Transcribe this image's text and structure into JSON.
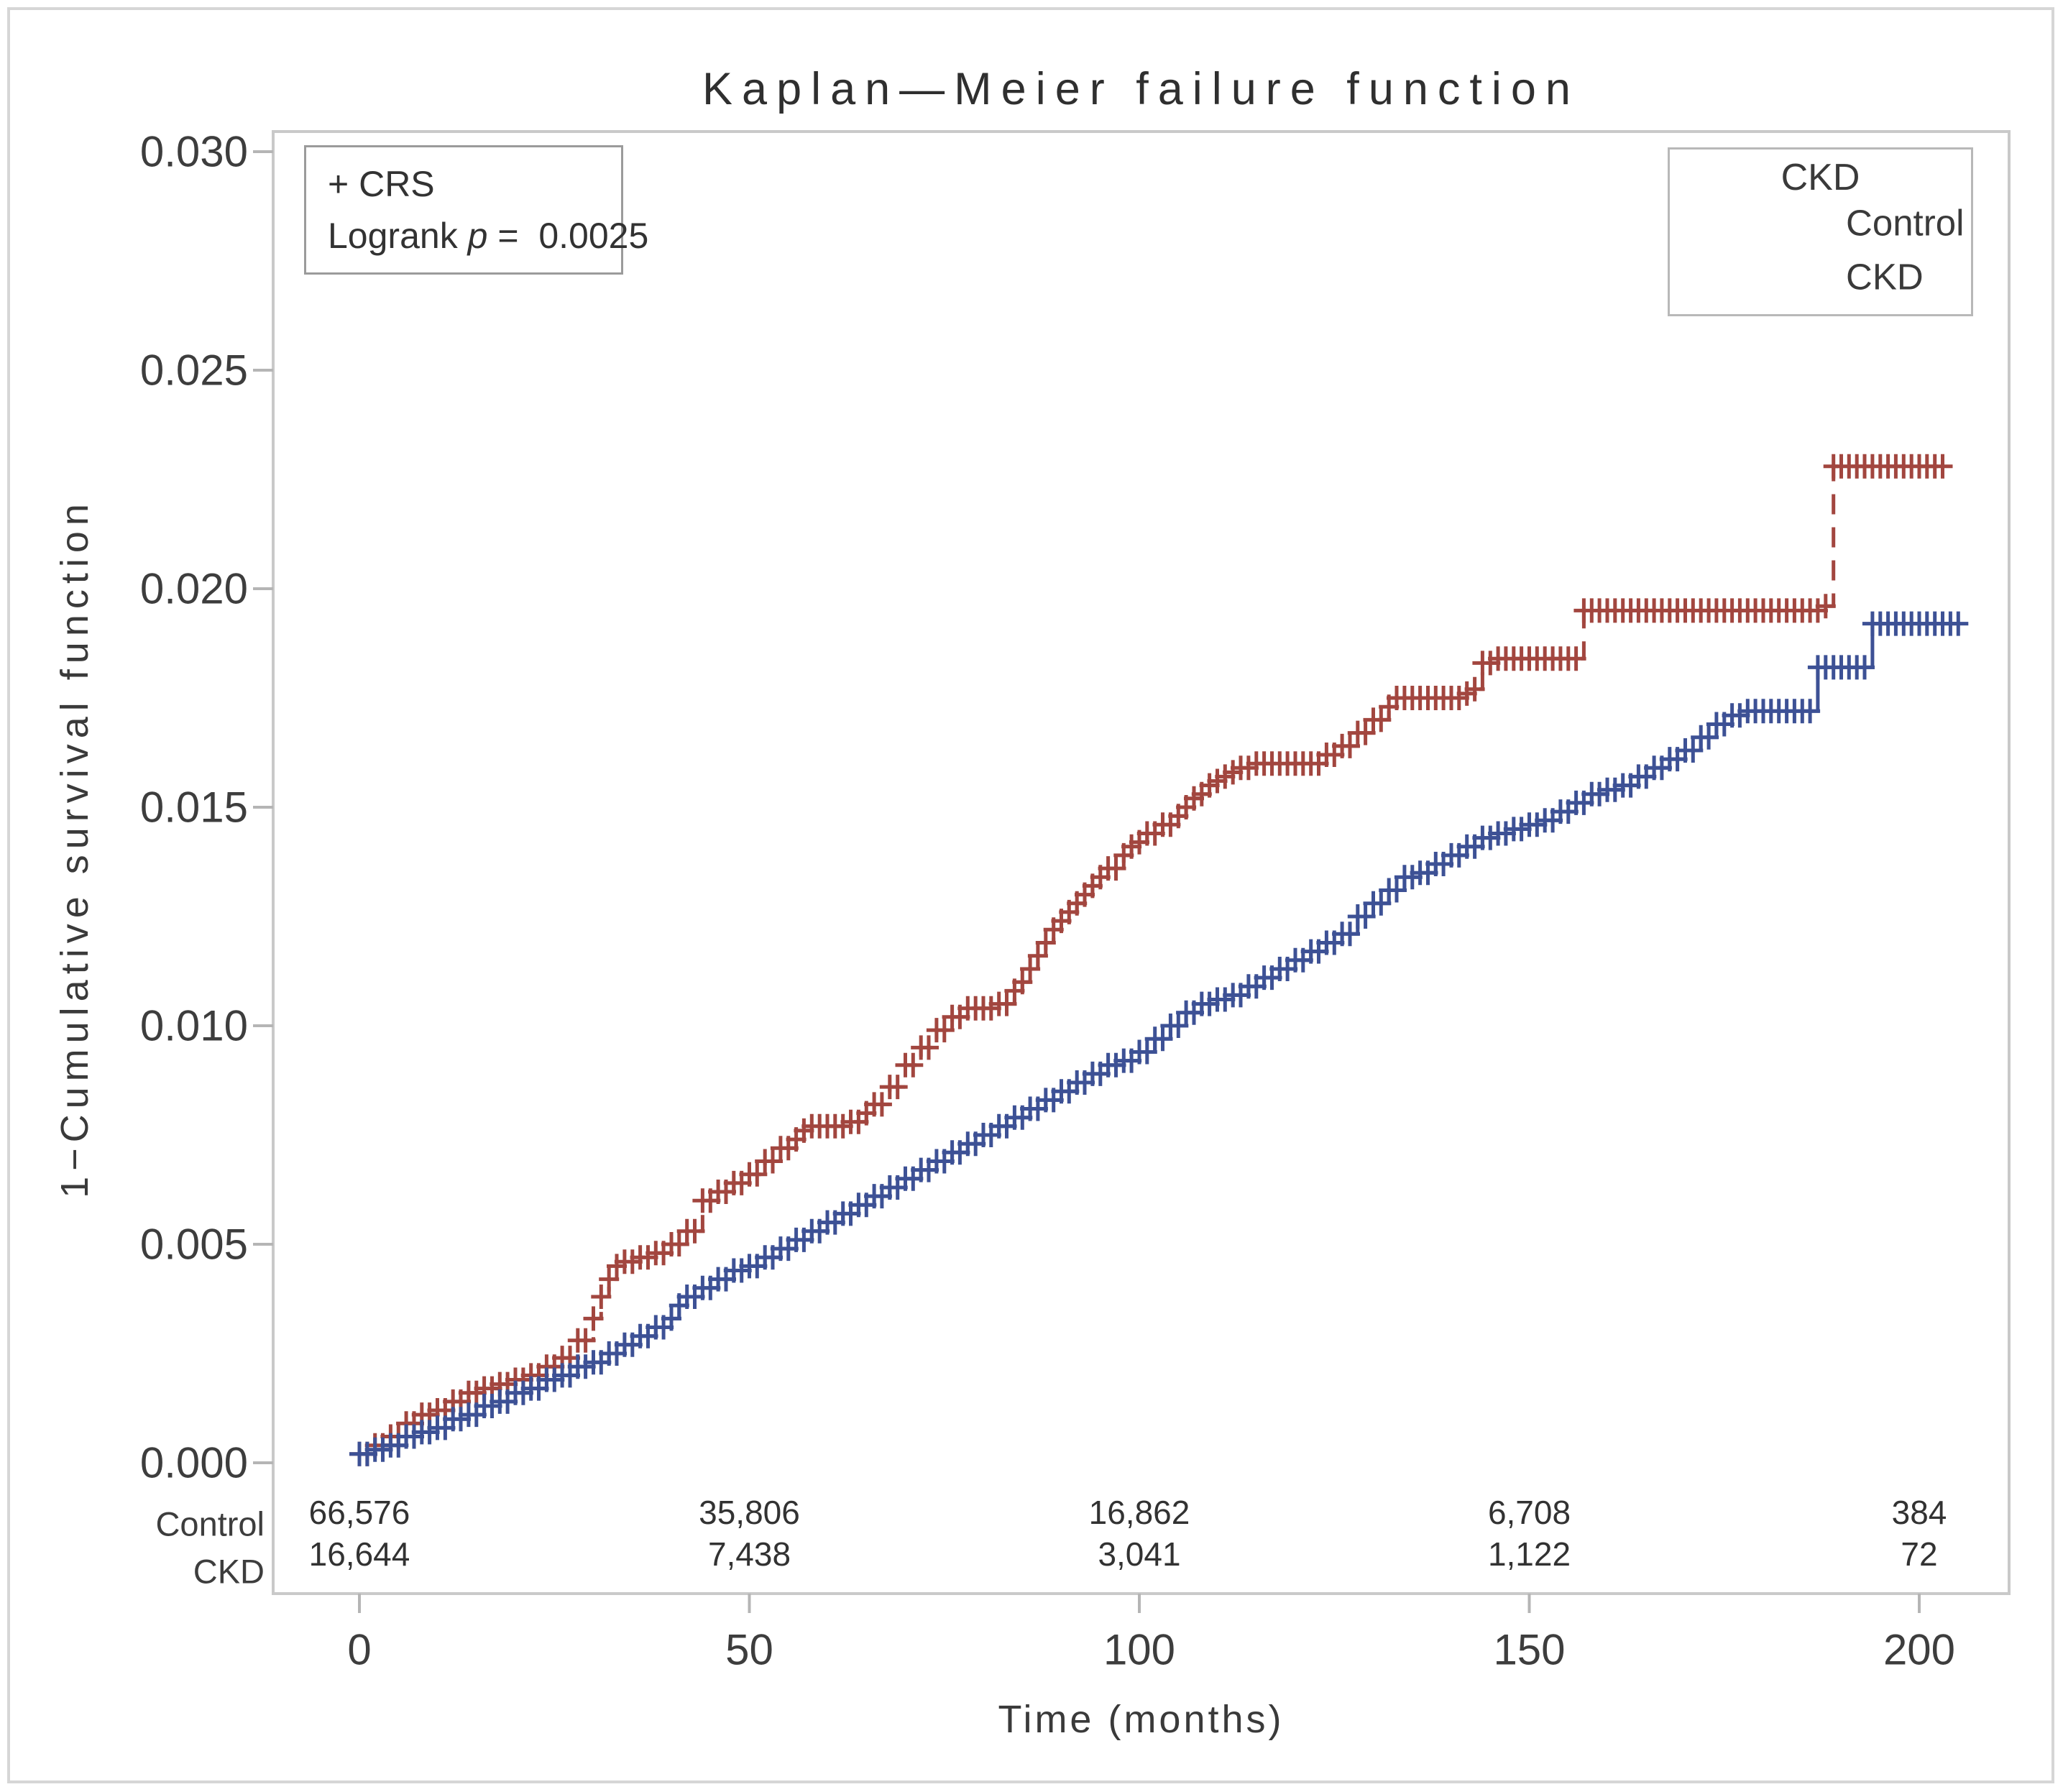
{
  "title": "Kaplan—Meier failure function",
  "annotation": {
    "line1": "+ CRS",
    "logrank_label": "Logrank",
    "p_symbol": "p",
    "equals": "=",
    "p_value": "0.0025"
  },
  "legend": {
    "title": "CKD",
    "entries": [
      {
        "label": "Control",
        "line_style": "solid",
        "color": "#3D5195"
      },
      {
        "label": "CKD",
        "line_style": "dashed",
        "color": "#A2463F"
      }
    ]
  },
  "axes": {
    "x": {
      "label": "Time (months)",
      "tick_labels": [
        "0",
        "50",
        "100",
        "150",
        "200"
      ],
      "tick_values": [
        0,
        50,
        100,
        150,
        200
      ]
    },
    "y": {
      "label": "1−Cumulative survival function",
      "tick_labels": [
        "0.000",
        "0.005",
        "0.010",
        "0.015",
        "0.020",
        "0.025",
        "0.030"
      ],
      "tick_values": [
        0,
        0.005,
        0.01,
        0.015,
        0.02,
        0.025,
        0.03
      ]
    }
  },
  "at_risk": {
    "columns": [
      0,
      50,
      100,
      150,
      200
    ],
    "rows": [
      {
        "label": "Control",
        "values": [
          "66,576",
          "35,806",
          "16,862",
          "6,708",
          "384"
        ]
      },
      {
        "label": "CKD",
        "values": [
          "16,644",
          "7,438",
          "3,041",
          "1,122",
          "72"
        ]
      }
    ]
  },
  "chart_data": {
    "type": "line",
    "subtype": "kaplan-meier-failure-step",
    "title": "Kaplan—Meier failure function",
    "xlabel": "Time (months)",
    "ylabel": "1−Cumulative survival function",
    "xlim": [
      -11,
      211
    ],
    "ylim": [
      -0.0003,
      0.0305
    ],
    "grid": false,
    "legend_position": "top-right",
    "logrank_p": "0.0025",
    "series": [
      {
        "name": "CKD",
        "color": "#A2463F",
        "line_style": "dashed",
        "censor_marks": true,
        "points": [
          [
            0,
            0.0002
          ],
          [
            2,
            0.0004
          ],
          [
            4,
            0.0006
          ],
          [
            6,
            0.0009
          ],
          [
            8,
            0.0011
          ],
          [
            10,
            0.0012
          ],
          [
            12,
            0.0014
          ],
          [
            14,
            0.0016
          ],
          [
            16,
            0.0017
          ],
          [
            18,
            0.0018
          ],
          [
            20,
            0.0019
          ],
          [
            22,
            0.002
          ],
          [
            24,
            0.0022
          ],
          [
            26,
            0.0024
          ],
          [
            28,
            0.0028
          ],
          [
            30,
            0.0033
          ],
          [
            31,
            0.0038
          ],
          [
            32,
            0.0042
          ],
          [
            33,
            0.0045
          ],
          [
            34,
            0.0046
          ],
          [
            36,
            0.0047
          ],
          [
            38,
            0.0048
          ],
          [
            40,
            0.005
          ],
          [
            42,
            0.0053
          ],
          [
            44,
            0.006
          ],
          [
            46,
            0.0062
          ],
          [
            48,
            0.0064
          ],
          [
            50,
            0.0066
          ],
          [
            52,
            0.0069
          ],
          [
            54,
            0.0072
          ],
          [
            56,
            0.0074
          ],
          [
            57,
            0.0076
          ],
          [
            58,
            0.0077
          ],
          [
            63,
            0.0078
          ],
          [
            65,
            0.008
          ],
          [
            66,
            0.0082
          ],
          [
            68,
            0.0086
          ],
          [
            70,
            0.0091
          ],
          [
            72,
            0.0095
          ],
          [
            74,
            0.0099
          ],
          [
            76,
            0.0102
          ],
          [
            78,
            0.0104
          ],
          [
            82,
            0.0105
          ],
          [
            84,
            0.0108
          ],
          [
            85,
            0.011
          ],
          [
            86,
            0.0113
          ],
          [
            87,
            0.0116
          ],
          [
            88,
            0.0119
          ],
          [
            89,
            0.0122
          ],
          [
            90,
            0.0124
          ],
          [
            91,
            0.0126
          ],
          [
            92,
            0.0128
          ],
          [
            93,
            0.013
          ],
          [
            94,
            0.0132
          ],
          [
            95,
            0.0134
          ],
          [
            96,
            0.0136
          ],
          [
            98,
            0.0139
          ],
          [
            99,
            0.0141
          ],
          [
            100,
            0.0142
          ],
          [
            101,
            0.0144
          ],
          [
            103,
            0.0146
          ],
          [
            105,
            0.0148
          ],
          [
            106,
            0.015
          ],
          [
            107,
            0.0152
          ],
          [
            108,
            0.0153
          ],
          [
            109,
            0.0155
          ],
          [
            110,
            0.0156
          ],
          [
            111,
            0.0157
          ],
          [
            112,
            0.0158
          ],
          [
            113,
            0.0159
          ],
          [
            115,
            0.016
          ],
          [
            124,
            0.0162
          ],
          [
            126,
            0.0164
          ],
          [
            128,
            0.0167
          ],
          [
            130,
            0.017
          ],
          [
            132,
            0.0173
          ],
          [
            133,
            0.0175
          ],
          [
            142,
            0.0176
          ],
          [
            143,
            0.0177
          ],
          [
            144,
            0.0183
          ],
          [
            146,
            0.0184
          ],
          [
            157,
            0.0195
          ],
          [
            188,
            0.0196
          ],
          [
            189,
            0.0228
          ],
          [
            203,
            0.0228
          ]
        ]
      },
      {
        "name": "Control",
        "color": "#3D5195",
        "line_style": "solid",
        "censor_marks": true,
        "points": [
          [
            0,
            0.0002
          ],
          [
            2,
            0.0003
          ],
          [
            4,
            0.0004
          ],
          [
            6,
            0.0006
          ],
          [
            8,
            0.0007
          ],
          [
            10,
            0.0008
          ],
          [
            12,
            0.001
          ],
          [
            14,
            0.0011
          ],
          [
            16,
            0.0013
          ],
          [
            18,
            0.0014
          ],
          [
            20,
            0.0016
          ],
          [
            22,
            0.0017
          ],
          [
            24,
            0.0019
          ],
          [
            26,
            0.002
          ],
          [
            28,
            0.0022
          ],
          [
            30,
            0.0023
          ],
          [
            32,
            0.0025
          ],
          [
            34,
            0.0027
          ],
          [
            36,
            0.0029
          ],
          [
            38,
            0.0031
          ],
          [
            40,
            0.0033
          ],
          [
            41,
            0.0036
          ],
          [
            42,
            0.0038
          ],
          [
            44,
            0.004
          ],
          [
            46,
            0.0042
          ],
          [
            48,
            0.0044
          ],
          [
            50,
            0.0045
          ],
          [
            52,
            0.0047
          ],
          [
            54,
            0.0049
          ],
          [
            56,
            0.0051
          ],
          [
            58,
            0.0053
          ],
          [
            60,
            0.0055
          ],
          [
            62,
            0.0057
          ],
          [
            64,
            0.0059
          ],
          [
            66,
            0.0061
          ],
          [
            68,
            0.0063
          ],
          [
            70,
            0.0065
          ],
          [
            72,
            0.0067
          ],
          [
            74,
            0.0069
          ],
          [
            76,
            0.0071
          ],
          [
            78,
            0.0073
          ],
          [
            80,
            0.0075
          ],
          [
            82,
            0.0077
          ],
          [
            84,
            0.0079
          ],
          [
            86,
            0.0081
          ],
          [
            88,
            0.0083
          ],
          [
            90,
            0.0085
          ],
          [
            92,
            0.0087
          ],
          [
            94,
            0.0089
          ],
          [
            96,
            0.0091
          ],
          [
            98,
            0.0092
          ],
          [
            100,
            0.0094
          ],
          [
            102,
            0.0097
          ],
          [
            104,
            0.01
          ],
          [
            106,
            0.0103
          ],
          [
            108,
            0.0105
          ],
          [
            110,
            0.0106
          ],
          [
            112,
            0.0107
          ],
          [
            114,
            0.0109
          ],
          [
            116,
            0.0111
          ],
          [
            118,
            0.0113
          ],
          [
            120,
            0.0115
          ],
          [
            122,
            0.0117
          ],
          [
            124,
            0.0119
          ],
          [
            126,
            0.0121
          ],
          [
            128,
            0.0125
          ],
          [
            130,
            0.0128
          ],
          [
            132,
            0.0131
          ],
          [
            134,
            0.0134
          ],
          [
            136,
            0.0135
          ],
          [
            138,
            0.0137
          ],
          [
            140,
            0.0139
          ],
          [
            142,
            0.0141
          ],
          [
            144,
            0.0143
          ],
          [
            146,
            0.0144
          ],
          [
            148,
            0.0145
          ],
          [
            150,
            0.0146
          ],
          [
            152,
            0.0147
          ],
          [
            154,
            0.0149
          ],
          [
            156,
            0.0151
          ],
          [
            158,
            0.0153
          ],
          [
            160,
            0.0154
          ],
          [
            162,
            0.0155
          ],
          [
            164,
            0.0157
          ],
          [
            166,
            0.0159
          ],
          [
            168,
            0.0161
          ],
          [
            170,
            0.0163
          ],
          [
            172,
            0.0166
          ],
          [
            174,
            0.0169
          ],
          [
            176,
            0.0171
          ],
          [
            178,
            0.0172
          ],
          [
            187,
            0.0182
          ],
          [
            194,
            0.0192
          ],
          [
            205,
            0.0192
          ]
        ]
      }
    ]
  }
}
